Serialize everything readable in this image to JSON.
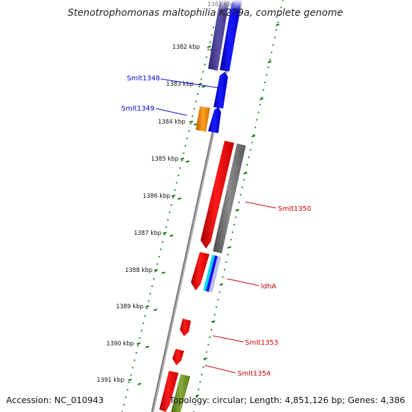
{
  "title": "Stenotrophomonas maltophilia K279a, complete genome",
  "ruler": {
    "labels": [
      "1382 kbp",
      "1383 kbp",
      "1384 kbp",
      "1385 kbp",
      "1386 kbp",
      "1387 kbp",
      "1388 kbp",
      "1389 kbp",
      "1390 kbp",
      "1391 kbp"
    ]
  },
  "gene_labels": [
    {
      "name": "Smlt1348",
      "color": "#0000cc"
    },
    {
      "name": "Smlt1349",
      "color": "#0000cc"
    },
    {
      "name": "Smlt1350",
      "color": "#cc0000"
    },
    {
      "name": "ldhA",
      "color": "#cc0000"
    },
    {
      "name": "Smlt1353",
      "color": "#cc0000"
    },
    {
      "name": "Smlt1354",
      "color": "#cc0000"
    }
  ],
  "colors": {
    "forward_cds": "#0000ee",
    "reverse_cds": "#ee0000",
    "tick": "#1a7a1a",
    "backbone": "#888888",
    "purple_feature": "#4a4090",
    "orange_feature": "#f08c00",
    "gray_feature": "#707070",
    "cyan_feature": "#00d8e8",
    "green_feature": "#6a8a20"
  },
  "footer": {
    "accession": "Accession: NC_010943",
    "topology": "Topology: circular; Length: 4,851,126 bp; Genes: 4,386"
  }
}
